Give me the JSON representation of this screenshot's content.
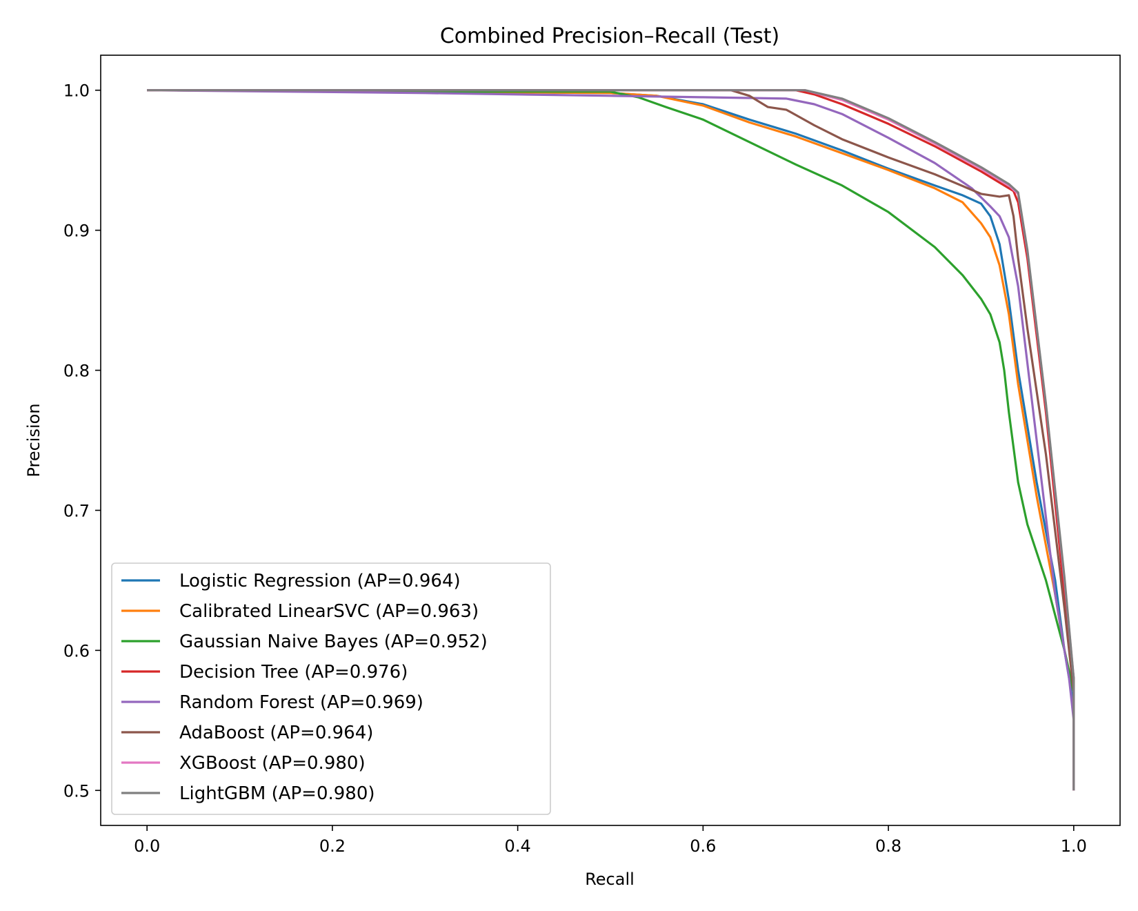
{
  "chart_data": {
    "type": "line",
    "title": "Combined Precision–Recall (Test)",
    "xlabel": "Recall",
    "ylabel": "Precision",
    "xlim": [
      -0.05,
      1.05
    ],
    "ylim": [
      0.475,
      1.025
    ],
    "xticks": [
      0.0,
      0.2,
      0.4,
      0.6,
      0.8,
      1.0
    ],
    "xtick_labels": [
      "0.0",
      "0.2",
      "0.4",
      "0.6",
      "0.8",
      "1.0"
    ],
    "yticks": [
      0.5,
      0.6,
      0.7,
      0.8,
      0.9,
      1.0
    ],
    "ytick_labels": [
      "0.5",
      "0.6",
      "0.7",
      "0.8",
      "0.9",
      "1.0"
    ],
    "grid": false,
    "legend_position": "lower-left",
    "series": [
      {
        "name": "Logistic Regression (AP=0.964)",
        "color": "#1f77b4",
        "x": [
          0.0,
          0.3,
          0.5,
          0.55,
          0.6,
          0.65,
          0.7,
          0.75,
          0.8,
          0.85,
          0.88,
          0.9,
          0.91,
          0.92,
          0.93,
          0.94,
          0.96,
          0.98,
          0.99,
          1.0,
          1.0
        ],
        "y": [
          1.0,
          0.999,
          0.998,
          0.996,
          0.99,
          0.979,
          0.969,
          0.957,
          0.944,
          0.932,
          0.925,
          0.919,
          0.91,
          0.89,
          0.85,
          0.8,
          0.72,
          0.65,
          0.6,
          0.56,
          0.5
        ]
      },
      {
        "name": "Calibrated LinearSVC (AP=0.963)",
        "color": "#ff7f0e",
        "x": [
          0.0,
          0.3,
          0.5,
          0.55,
          0.6,
          0.65,
          0.7,
          0.75,
          0.8,
          0.85,
          0.88,
          0.9,
          0.91,
          0.92,
          0.93,
          0.94,
          0.96,
          0.98,
          0.99,
          1.0,
          1.0
        ],
        "y": [
          1.0,
          0.999,
          0.998,
          0.996,
          0.989,
          0.977,
          0.967,
          0.955,
          0.943,
          0.93,
          0.92,
          0.905,
          0.895,
          0.875,
          0.84,
          0.79,
          0.71,
          0.64,
          0.6,
          0.57,
          0.5
        ]
      },
      {
        "name": "Gaussian Naive Bayes (AP=0.952)",
        "color": "#2ca02c",
        "x": [
          0.0,
          0.3,
          0.5,
          0.53,
          0.56,
          0.6,
          0.65,
          0.7,
          0.75,
          0.8,
          0.85,
          0.88,
          0.9,
          0.91,
          0.92,
          0.925,
          0.93,
          0.94,
          0.95,
          0.97,
          0.99,
          1.0,
          1.0
        ],
        "y": [
          1.0,
          0.999,
          0.999,
          0.995,
          0.988,
          0.979,
          0.963,
          0.947,
          0.932,
          0.913,
          0.888,
          0.868,
          0.851,
          0.84,
          0.82,
          0.8,
          0.77,
          0.72,
          0.69,
          0.65,
          0.6,
          0.57,
          0.5
        ]
      },
      {
        "name": "Decision Tree (AP=0.976)",
        "color": "#d62728",
        "x": [
          0.0,
          0.5,
          0.7,
          0.72,
          0.75,
          0.8,
          0.85,
          0.9,
          0.92,
          0.935,
          0.94,
          0.95,
          0.97,
          0.99,
          1.0,
          1.0
        ],
        "y": [
          1.0,
          1.0,
          1.0,
          0.997,
          0.99,
          0.976,
          0.96,
          0.942,
          0.934,
          0.928,
          0.92,
          0.88,
          0.77,
          0.64,
          0.58,
          0.5
        ]
      },
      {
        "name": "Random Forest (AP=0.969)",
        "color": "#9467bd",
        "x": [
          0.0,
          0.3,
          0.5,
          0.6,
          0.69,
          0.72,
          0.75,
          0.8,
          0.85,
          0.89,
          0.91,
          0.92,
          0.93,
          0.94,
          0.96,
          0.98,
          0.995,
          1.0,
          1.0
        ],
        "y": [
          1.0,
          0.998,
          0.996,
          0.995,
          0.994,
          0.99,
          0.983,
          0.966,
          0.948,
          0.93,
          0.917,
          0.91,
          0.895,
          0.86,
          0.75,
          0.64,
          0.58,
          0.55,
          0.5
        ]
      },
      {
        "name": "AdaBoost (AP=0.964)",
        "color": "#8c564b",
        "x": [
          0.0,
          0.5,
          0.63,
          0.65,
          0.67,
          0.69,
          0.72,
          0.75,
          0.8,
          0.85,
          0.9,
          0.92,
          0.93,
          0.935,
          0.94,
          0.95,
          0.97,
          0.99,
          1.0,
          1.0
        ],
        "y": [
          1.0,
          1.0,
          1.0,
          0.996,
          0.988,
          0.986,
          0.975,
          0.965,
          0.952,
          0.94,
          0.926,
          0.924,
          0.925,
          0.91,
          0.88,
          0.83,
          0.74,
          0.63,
          0.57,
          0.5
        ]
      },
      {
        "name": "XGBoost (AP=0.980)",
        "color": "#e377c2",
        "x": [
          0.0,
          0.5,
          0.71,
          0.75,
          0.8,
          0.85,
          0.9,
          0.93,
          0.94,
          0.95,
          0.97,
          0.99,
          1.0,
          1.0
        ],
        "y": [
          1.0,
          1.0,
          1.0,
          0.993,
          0.979,
          0.962,
          0.944,
          0.932,
          0.926,
          0.885,
          0.775,
          0.65,
          0.58,
          0.5
        ]
      },
      {
        "name": "LightGBM (AP=0.980)",
        "color": "#7f7f7f",
        "x": [
          0.0,
          0.5,
          0.71,
          0.75,
          0.8,
          0.85,
          0.9,
          0.93,
          0.94,
          0.95,
          0.97,
          0.99,
          1.0,
          1.0
        ],
        "y": [
          1.0,
          1.0,
          1.0,
          0.994,
          0.98,
          0.963,
          0.945,
          0.933,
          0.927,
          0.886,
          0.776,
          0.652,
          0.58,
          0.5
        ]
      }
    ]
  }
}
